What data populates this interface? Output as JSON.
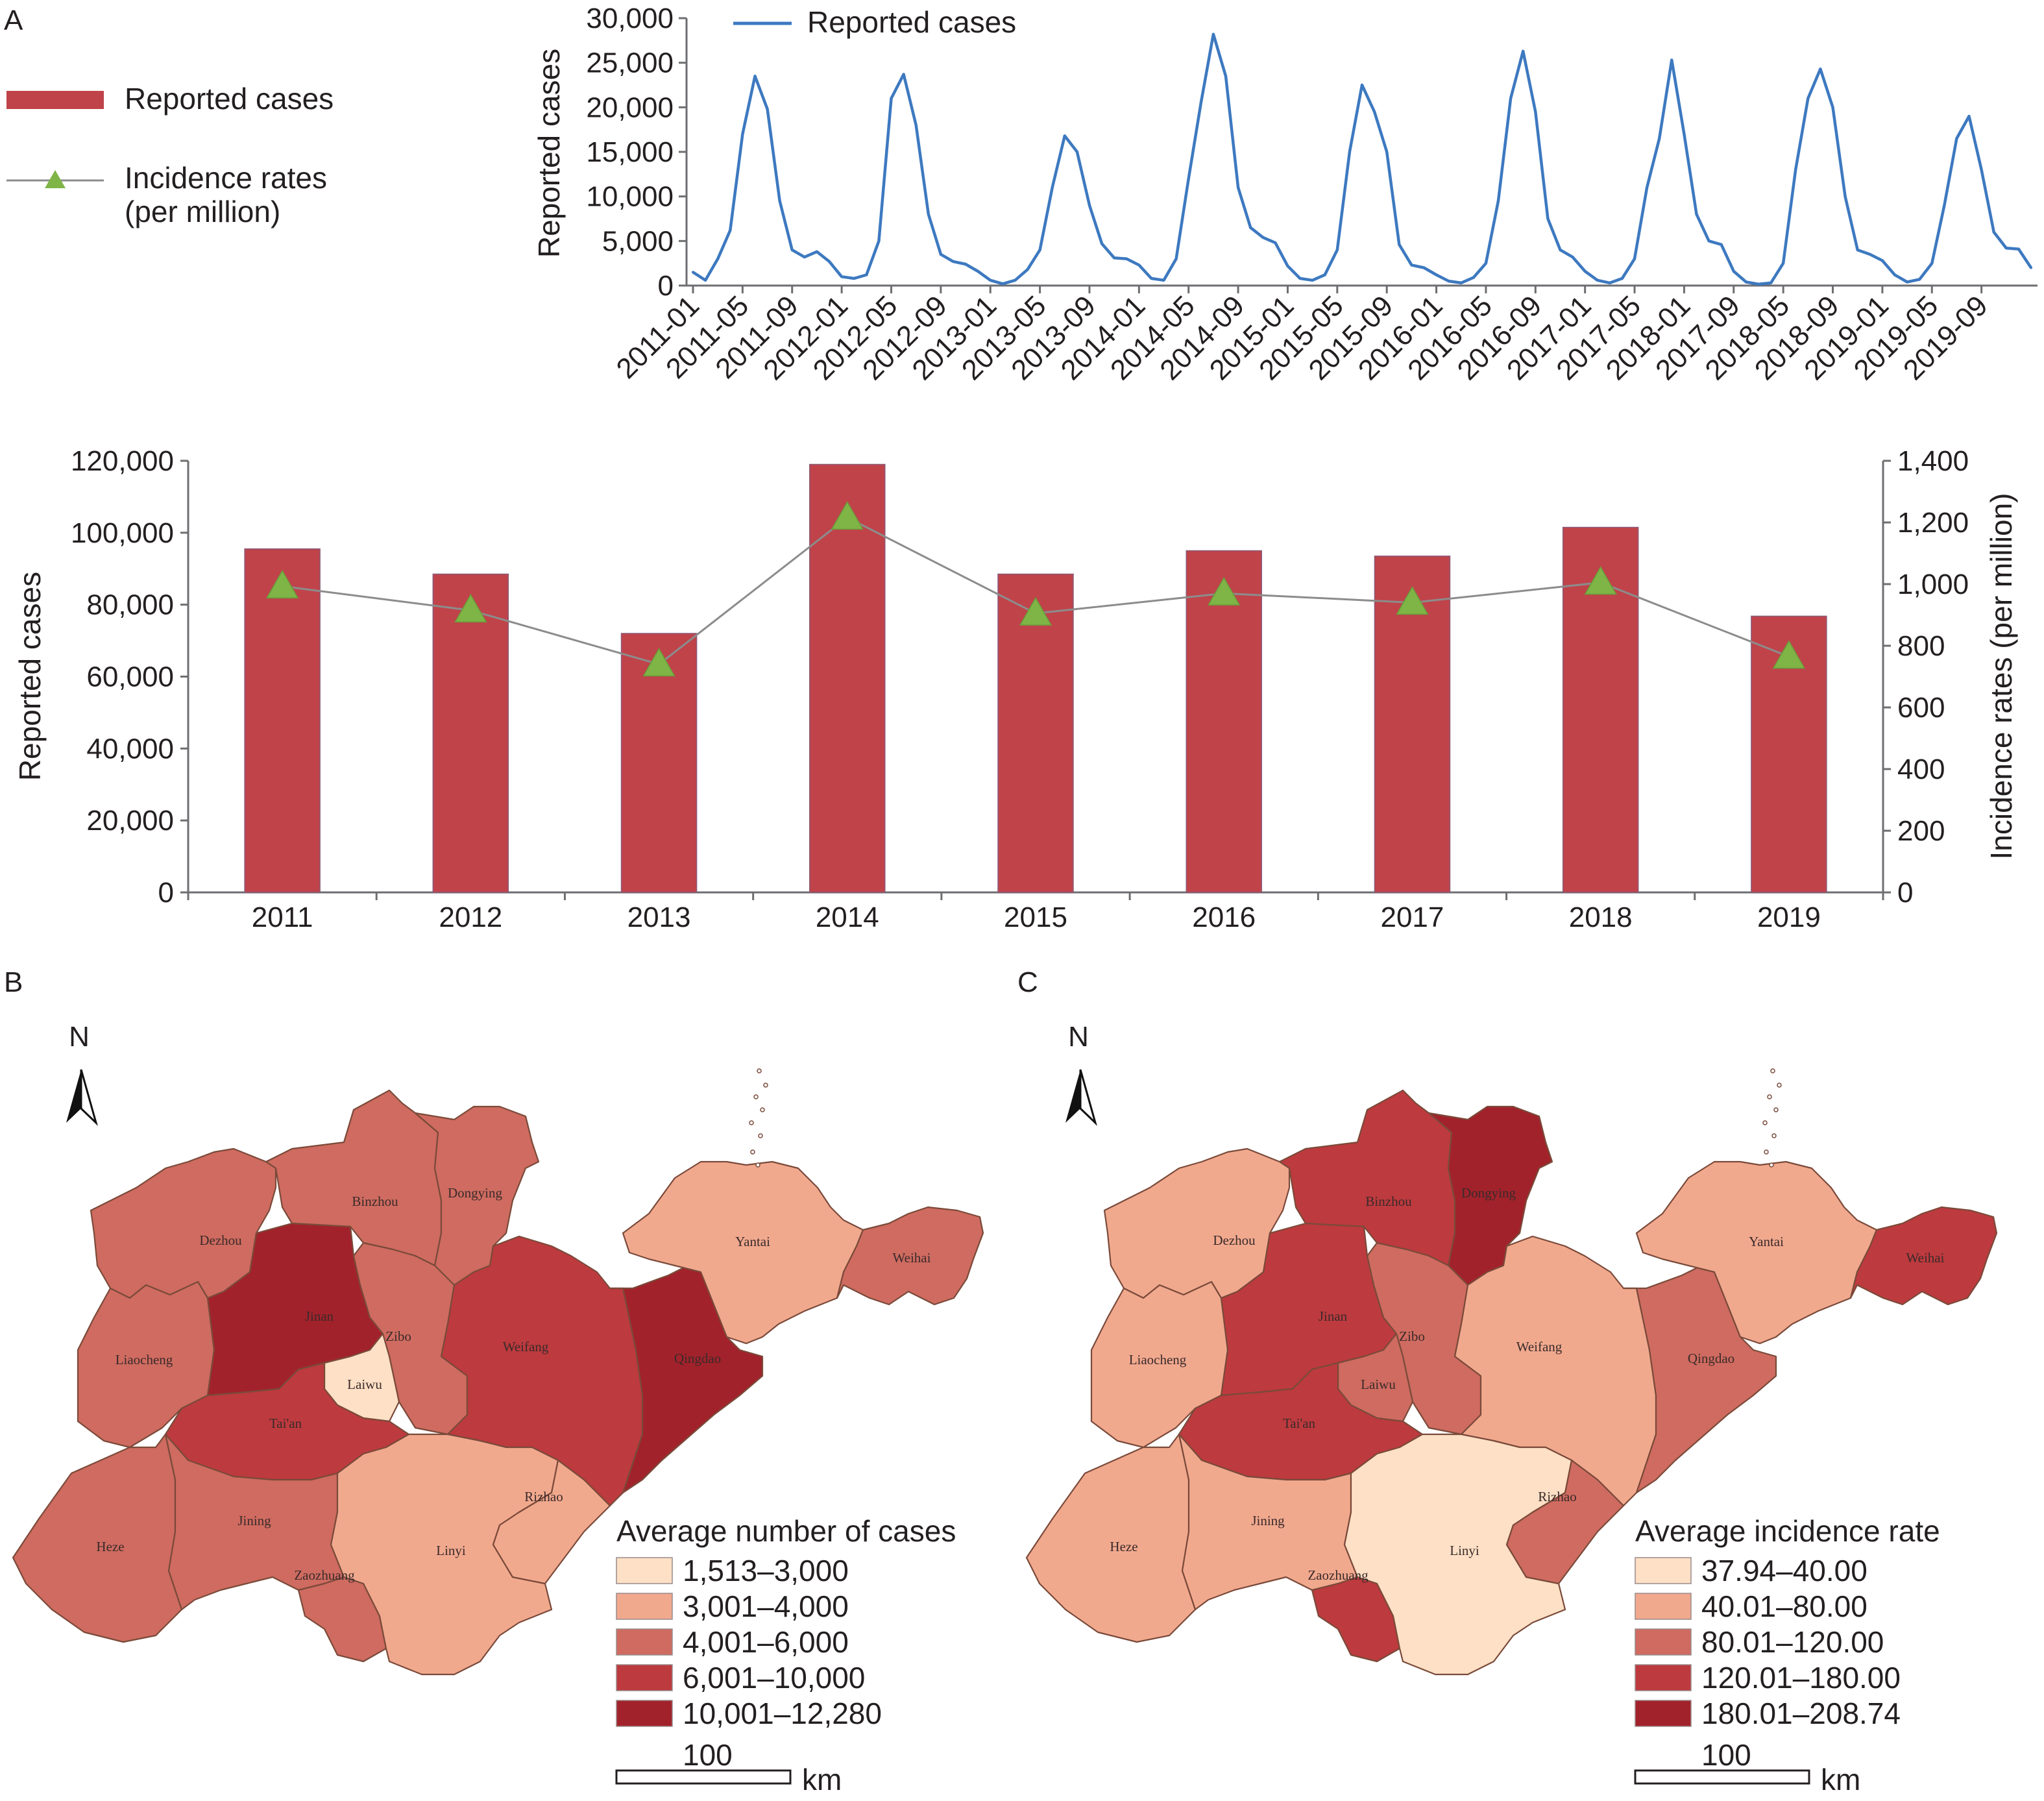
{
  "panels": {
    "a": "A",
    "b": "B",
    "c": "C"
  },
  "legend": {
    "bar_label": "Reported cases",
    "line_label_1": "Incidence rates",
    "line_label_2": "(per million)"
  },
  "colors": {
    "bar": "#c0434a",
    "line_monthly": "#3d79c0",
    "line_annual": "#8c8c8c",
    "marker": "#7fb446",
    "axis": "#6d6e71"
  },
  "chart_data": [
    {
      "type": "line",
      "title": "",
      "xlabel": "",
      "ylabel": "Reported cases",
      "ylim": [
        0,
        30000
      ],
      "yticks": [
        "0",
        "5,000",
        "10,000",
        "15,000",
        "20,000",
        "25,000",
        "30,000"
      ],
      "xtick_labels": [
        "2011-01",
        "2011-05",
        "2011-09",
        "2012-01",
        "2012-05",
        "2012-09",
        "2013-01",
        "2013-05",
        "2013-09",
        "2014-01",
        "2014-05",
        "2014-09",
        "2015-01",
        "2015-05",
        "2015-09",
        "2016-01",
        "2016-05",
        "2016-09",
        "2017-01",
        "2017-05",
        "2018-01",
        "2017-09",
        "2018-05",
        "2018-09",
        "2019-01",
        "2019-05",
        "2019-09"
      ],
      "series": [
        {
          "name": "Reported cases",
          "values": [
            1500,
            600,
            3000,
            6200,
            17000,
            23500,
            19800,
            9500,
            4000,
            3200,
            3800,
            2700,
            1000,
            800,
            1200,
            5000,
            21000,
            23700,
            18000,
            8000,
            3500,
            2700,
            2400,
            1600,
            600,
            200,
            600,
            1800,
            4000,
            11000,
            16800,
            15000,
            9000,
            4700,
            3100,
            3000,
            2300,
            800,
            600,
            3000,
            12000,
            20500,
            28200,
            23500,
            11000,
            6500,
            5400,
            4800,
            2200,
            800,
            600,
            1200,
            4000,
            15000,
            22500,
            19500,
            15000,
            4600,
            2300,
            2000,
            1200,
            500,
            300,
            900,
            2500,
            9500,
            21000,
            26300,
            19500,
            7500,
            4000,
            3200,
            1600,
            600,
            300,
            800,
            3000,
            11000,
            16500,
            25300,
            17000,
            8000,
            5000,
            4600,
            1600,
            400,
            150,
            300,
            2500,
            13000,
            21000,
            24300,
            20000,
            10000,
            4000,
            3500,
            2800,
            1200,
            400,
            700,
            2500,
            9000,
            16500,
            19000,
            13000,
            6000,
            4200,
            4100,
            2000
          ]
        }
      ]
    },
    {
      "type": "bar",
      "title": "",
      "xlabel": "",
      "ylabel": "Reported cases",
      "y2label": "Incidence rates (per million)",
      "categories": [
        "2011",
        "2012",
        "2013",
        "2014",
        "2015",
        "2016",
        "2017",
        "2018",
        "2019"
      ],
      "ylim": [
        0,
        120000
      ],
      "y2lim": [
        0,
        1400
      ],
      "yticks": [
        "0",
        "20,000",
        "40,000",
        "60,000",
        "80,000",
        "100,000",
        "120,000"
      ],
      "y2ticks": [
        "0",
        "200",
        "400",
        "600",
        "800",
        "1,000",
        "1,200",
        "1,400"
      ],
      "series": [
        {
          "name": "Reported cases",
          "kind": "bar",
          "values": [
            95500,
            88500,
            72000,
            119000,
            88500,
            95000,
            93500,
            101500,
            76800
          ]
        },
        {
          "name": "Incidence rates (per million)",
          "kind": "line",
          "axis": "right",
          "values": [
            993,
            915,
            740,
            1216,
            905,
            970,
            940,
            1005,
            765
          ]
        }
      ]
    }
  ],
  "maps": {
    "north_label": "N",
    "scale_value": "100",
    "scale_unit": "km",
    "b": {
      "legend_title": "Average number of cases",
      "classes": [
        {
          "label": "1,513–3,000",
          "color": "#fde0c5"
        },
        {
          "label": "3,001–4,000",
          "color": "#f1a98e"
        },
        {
          "label": "4,001–6,000",
          "color": "#cf6b60"
        },
        {
          "label": "6,001–10,000",
          "color": "#bd3a3e"
        },
        {
          "label": "10,001–12,280",
          "color": "#a2222b"
        }
      ],
      "regions": [
        {
          "name": "Dezhou",
          "class": 2
        },
        {
          "name": "Binzhou",
          "class": 2
        },
        {
          "name": "Dongying",
          "class": 2
        },
        {
          "name": "Liaocheng",
          "class": 2
        },
        {
          "name": "Jinan",
          "class": 4
        },
        {
          "name": "Zibo",
          "class": 2
        },
        {
          "name": "Laiwu",
          "class": 0
        },
        {
          "name": "Tai'an",
          "class": 3
        },
        {
          "name": "Weifang",
          "class": 3
        },
        {
          "name": "Qingdao",
          "class": 4
        },
        {
          "name": "Yantai",
          "class": 1
        },
        {
          "name": "Weihai",
          "class": 2
        },
        {
          "name": "Heze",
          "class": 2
        },
        {
          "name": "Jining",
          "class": 2
        },
        {
          "name": "Zaozhuang",
          "class": 2
        },
        {
          "name": "Linyi",
          "class": 1
        },
        {
          "name": "Rizhao",
          "class": 1
        }
      ]
    },
    "c": {
      "legend_title": "Average incidence rate",
      "classes": [
        {
          "label": "37.94–40.00",
          "color": "#fde0c5"
        },
        {
          "label": "40.01–80.00",
          "color": "#f1a98e"
        },
        {
          "label": "80.01–120.00",
          "color": "#cf6b60"
        },
        {
          "label": "120.01–180.00",
          "color": "#bd3a3e"
        },
        {
          "label": "180.01–208.74",
          "color": "#a2222b"
        }
      ],
      "regions": [
        {
          "name": "Dezhou",
          "class": 1
        },
        {
          "name": "Binzhou",
          "class": 3
        },
        {
          "name": "Dongying",
          "class": 4
        },
        {
          "name": "Liaocheng",
          "class": 1
        },
        {
          "name": "Jinan",
          "class": 3
        },
        {
          "name": "Zibo",
          "class": 2
        },
        {
          "name": "Laiwu",
          "class": 2
        },
        {
          "name": "Tai'an",
          "class": 3
        },
        {
          "name": "Weifang",
          "class": 1
        },
        {
          "name": "Qingdao",
          "class": 2
        },
        {
          "name": "Yantai",
          "class": 1
        },
        {
          "name": "Weihai",
          "class": 3
        },
        {
          "name": "Heze",
          "class": 1
        },
        {
          "name": "Jining",
          "class": 1
        },
        {
          "name": "Zaozhuang",
          "class": 3
        },
        {
          "name": "Linyi",
          "class": 0
        },
        {
          "name": "Rizhao",
          "class": 2
        }
      ]
    }
  }
}
